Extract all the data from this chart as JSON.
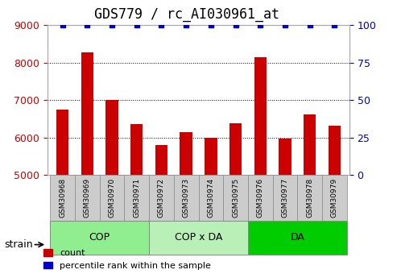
{
  "title": "GDS779 / rc_AI030961_at",
  "samples": [
    "GSM30968",
    "GSM30969",
    "GSM30970",
    "GSM30971",
    "GSM30972",
    "GSM30973",
    "GSM30974",
    "GSM30975",
    "GSM30976",
    "GSM30977",
    "GSM30978",
    "GSM30979"
  ],
  "values": [
    6750,
    8280,
    7000,
    6350,
    5800,
    6150,
    6000,
    6380,
    8150,
    5980,
    6620,
    6320
  ],
  "percentile": [
    100,
    100,
    100,
    100,
    100,
    100,
    100,
    100,
    100,
    100,
    100,
    100
  ],
  "ylim": [
    5000,
    9000
  ],
  "yticks": [
    5000,
    6000,
    7000,
    8000,
    9000
  ],
  "y2ticks": [
    0,
    25,
    50,
    75,
    100
  ],
  "bar_color": "#cc0000",
  "percentile_color": "#0000cc",
  "groups": [
    {
      "label": "COP",
      "start": 0,
      "end": 4,
      "color": "#90ee90"
    },
    {
      "label": "COP x DA",
      "start": 4,
      "end": 8,
      "color": "#b8f0b8"
    },
    {
      "label": "DA",
      "start": 8,
      "end": 12,
      "color": "#00cc00"
    }
  ],
  "group_label": "strain",
  "legend_count_label": "count",
  "legend_percentile_label": "percentile rank within the sample",
  "bar_width": 0.5,
  "grid_color": "#000000",
  "grid_linestyle": ":",
  "bg_color": "#ffffff",
  "axis_label_color_left": "#cc0000",
  "axis_label_color_right": "#0000cc",
  "title_fontsize": 12,
  "tick_fontsize": 9,
  "label_box_color": "#cccccc"
}
